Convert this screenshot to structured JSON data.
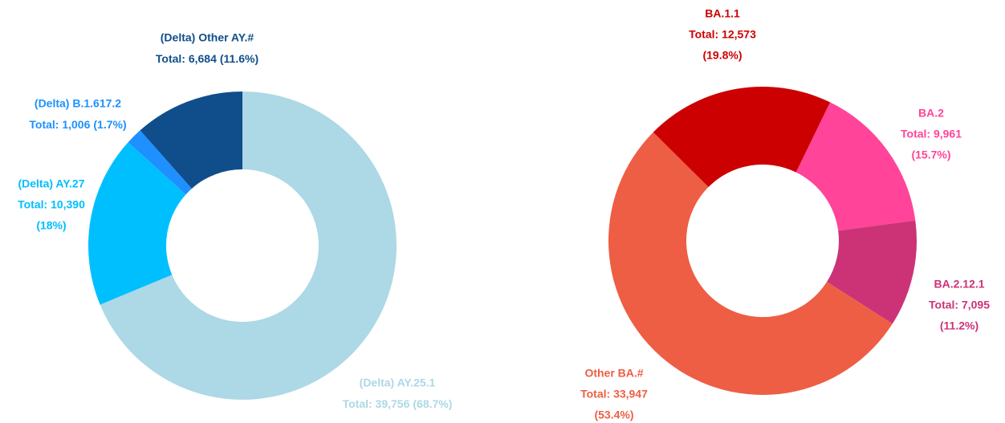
{
  "chart_data": [
    {
      "type": "pie",
      "categories": [
        "(Delta) AY.25.1",
        "(Delta) AY.27",
        "(Delta) B.1.617.2",
        "(Delta) Other AY.#"
      ],
      "values": [
        39756,
        10390,
        1006,
        6684
      ],
      "value_labels": [
        "Total: 39,756",
        "Total: 10,390",
        "Total: 1,006",
        "Total: 6,684"
      ],
      "percent_labels": [
        "(68.7%)",
        "(18%)",
        "(1.7%)",
        "(11.6%)"
      ],
      "colors": [
        "#add8e6",
        "#00bfff",
        "#1e90ff",
        "#104e8b"
      ]
    },
    {
      "type": "pie",
      "categories": [
        "BA.2",
        "BA.2.12.1",
        "Other BA.#",
        "BA.1.1"
      ],
      "values": [
        9961,
        7095,
        33947,
        12573
      ],
      "value_labels": [
        "Total: 9,961",
        "Total: 7,095",
        "Total: 33,947",
        "Total: 12,573"
      ],
      "percent_labels": [
        "(15.7%)",
        "(11.2%)",
        "(53.4%)",
        "(19.8%)"
      ],
      "colors": [
        "#ff4499",
        "#cc3377",
        "#ee5e44",
        "#cc0000"
      ]
    }
  ]
}
